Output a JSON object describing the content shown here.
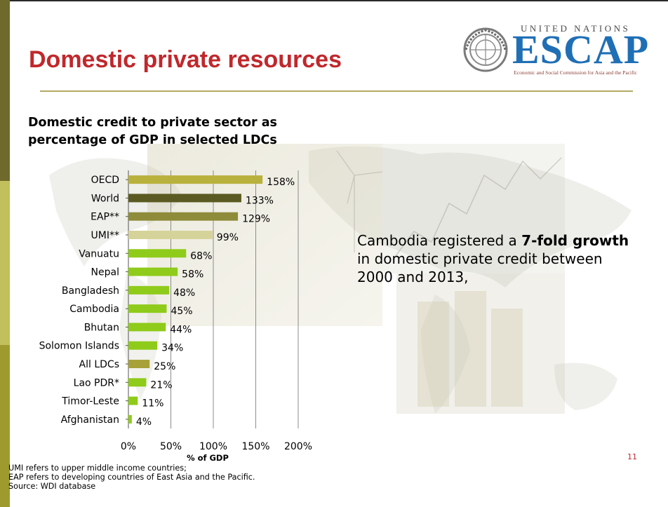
{
  "slide": {
    "title": "Domestic private resources",
    "page_number": "11",
    "notes": [
      "UMI refers to upper middle income countries;",
      "EAP refers to developing countries of East Asia and the Pacific.",
      "Source: WDI database"
    ],
    "callout": {
      "prefix": "Cambodia registered a ",
      "bold": "7-fold growth",
      "suffix": " in domestic private credit between 2000 and 2013,"
    }
  },
  "logo": {
    "org_top": "UNITED NATIONS",
    "org_name": "ESCAP",
    "org_full": "Economic and Social Commission for Asia and the Pacific"
  },
  "colors": {
    "title": "#c0282c",
    "accent_olive": "#b4a964",
    "bar_green": "#8fcb1a",
    "logo_blue": "#1f6fb5"
  },
  "chart_data": {
    "type": "bar",
    "orientation": "horizontal",
    "title_line1": "Domestic credit to private sector as",
    "title_line2": "percentage of GDP in selected LDCs",
    "xlabel": "% of GDP",
    "ylabel": "",
    "xlim": [
      0,
      200
    ],
    "xticks": [
      "0%",
      "50%",
      "100%",
      "150%",
      "200%"
    ],
    "grid": true,
    "legend": "none",
    "categories": [
      "OECD",
      "World",
      "EAP**",
      "UMI**",
      "Vanuatu",
      "Nepal",
      "Bangladesh",
      "Cambodia",
      "Bhutan",
      "Solomon Islands",
      "All LDCs",
      "Lao PDR*",
      "Timor-Leste",
      "Afghanistan"
    ],
    "values": [
      158,
      133,
      129,
      99,
      68,
      58,
      48,
      45,
      44,
      34,
      25,
      21,
      11,
      4
    ],
    "value_labels": [
      "158%",
      "133%",
      "129%",
      "99%",
      "68%",
      "58%",
      "48%",
      "45%",
      "44%",
      "34%",
      "25%",
      "21%",
      "11%",
      "4%"
    ],
    "bar_colors": [
      "#b9b13e",
      "#5a5a22",
      "#8e8c3a",
      "#d6d39a",
      "#8fcb1a",
      "#8fcb1a",
      "#8fcb1a",
      "#8fcb1a",
      "#8fcb1a",
      "#8fcb1a",
      "#a8a13a",
      "#8fcb1a",
      "#8fcb1a",
      "#8fcb1a"
    ]
  }
}
